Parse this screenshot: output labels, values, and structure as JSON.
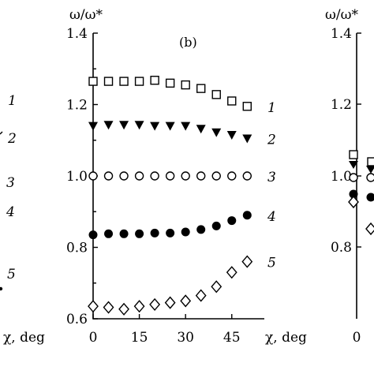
{
  "chart_data": [
    {
      "type": "scatter",
      "panel": "(b)",
      "ylabel": "ω/ω*",
      "xlabel": "χ, deg",
      "xlim": [
        0,
        53
      ],
      "ylim": [
        0.6,
        1.4
      ],
      "xticks": [
        "0",
        "15",
        "30",
        "45"
      ],
      "yticks": [
        "0.6",
        "0.8",
        "1.0",
        "1.2",
        "1.4"
      ],
      "grid": false,
      "series": [
        {
          "name": "1",
          "marker": "open-square",
          "x": [
            0,
            5,
            10,
            15,
            20,
            25,
            30,
            35,
            40,
            45,
            50
          ],
          "y": [
            1.265,
            1.265,
            1.265,
            1.265,
            1.268,
            1.26,
            1.255,
            1.245,
            1.228,
            1.21,
            1.195
          ]
        },
        {
          "name": "2",
          "marker": "filled-triangle-down",
          "x": [
            0,
            5,
            10,
            15,
            20,
            25,
            30,
            35,
            40,
            45,
            50
          ],
          "y": [
            1.14,
            1.143,
            1.143,
            1.143,
            1.14,
            1.14,
            1.14,
            1.132,
            1.122,
            1.115,
            1.105
          ]
        },
        {
          "name": "3",
          "marker": "open-circle",
          "x": [
            0,
            5,
            10,
            15,
            20,
            25,
            30,
            35,
            40,
            45,
            50
          ],
          "y": [
            1.0,
            1.0,
            1.0,
            1.0,
            1.0,
            1.0,
            1.0,
            1.0,
            1.0,
            1.0,
            1.0
          ]
        },
        {
          "name": "4",
          "marker": "filled-circle",
          "x": [
            0,
            5,
            10,
            15,
            20,
            25,
            30,
            35,
            40,
            45,
            50
          ],
          "y": [
            0.835,
            0.838,
            0.838,
            0.838,
            0.84,
            0.84,
            0.843,
            0.85,
            0.86,
            0.875,
            0.89
          ]
        },
        {
          "name": "5",
          "marker": "open-diamond",
          "x": [
            0,
            5,
            10,
            15,
            20,
            25,
            30,
            35,
            40,
            45,
            50
          ],
          "y": [
            0.635,
            0.632,
            0.627,
            0.635,
            0.64,
            0.645,
            0.65,
            0.665,
            0.69,
            0.73,
            0.76
          ]
        }
      ]
    }
  ],
  "left_fragment": {
    "xlabel": "χ, deg",
    "series_labels": [
      "1",
      "2",
      "3",
      "4",
      "5"
    ]
  },
  "right_fragment": {
    "ylabel": "ω/ω*",
    "yticks": [
      "0.8",
      "1.0",
      "1.2",
      "1.4"
    ],
    "xtick": "0"
  }
}
